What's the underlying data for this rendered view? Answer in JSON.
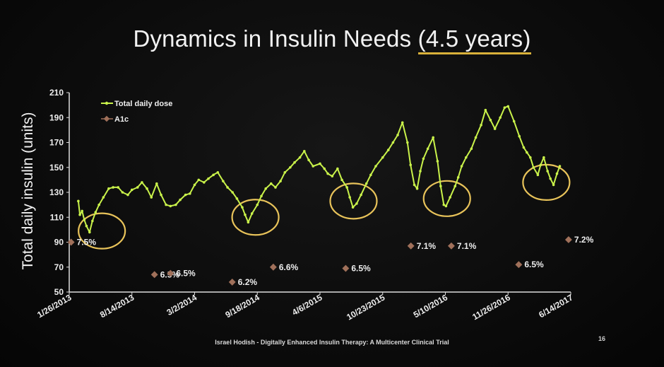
{
  "slide": {
    "title_main": "Dynamics in Insulin Needs ",
    "title_highlight": "(4.5 years)",
    "footer": "Israel Hodish - Digitally Enhanced Insulin Therapy: A Multicenter Clinical Trial",
    "page_number": "16"
  },
  "colors": {
    "dose_line": "#c9f24a",
    "a1c_marker": "#a0705a",
    "circle": "#e8c35a",
    "axis": "#dddddd"
  },
  "chart_data": {
    "type": "line",
    "title": "",
    "ylabel": "Total daily insulin (units)",
    "xlabel": "",
    "ylim": [
      50,
      210
    ],
    "yticks": [
      50,
      70,
      90,
      110,
      130,
      150,
      170,
      190,
      210
    ],
    "x_ticks": [
      "1/26/2013",
      "8/14/2013",
      "3/2/2014",
      "9/18/2014",
      "4/6/2015",
      "10/23/2015",
      "5/10/2016",
      "11/26/2016",
      "6/14/2017"
    ],
    "legend": [
      "Total daily dose",
      "A1c"
    ],
    "legend_position": "top-left",
    "series": [
      {
        "name": "Total daily dose",
        "x": [
          "2013-02-24",
          "2013-03-01",
          "2013-03-08",
          "2013-03-15",
          "2013-03-22",
          "2013-04-01",
          "2013-04-10",
          "2013-04-20",
          "2013-05-01",
          "2013-05-15",
          "2013-06-01",
          "2013-06-15",
          "2013-07-01",
          "2013-07-15",
          "2013-08-01",
          "2013-08-14",
          "2013-09-01",
          "2013-09-15",
          "2013-10-01",
          "2013-10-15",
          "2013-11-01",
          "2013-11-15",
          "2013-12-01",
          "2013-12-15",
          "2014-01-01",
          "2014-01-15",
          "2014-02-01",
          "2014-02-15",
          "2014-03-02",
          "2014-03-15",
          "2014-04-01",
          "2014-04-15",
          "2014-05-01",
          "2014-05-15",
          "2014-06-01",
          "2014-06-15",
          "2014-07-01",
          "2014-07-15",
          "2014-08-01",
          "2014-08-10",
          "2014-08-20",
          "2014-09-01",
          "2014-09-18",
          "2014-10-01",
          "2014-10-15",
          "2014-11-01",
          "2014-11-15",
          "2014-12-01",
          "2014-12-15",
          "2015-01-01",
          "2015-01-15",
          "2015-02-01",
          "2015-02-15",
          "2015-03-01",
          "2015-03-15",
          "2015-04-06",
          "2015-04-20",
          "2015-05-01",
          "2015-05-15",
          "2015-06-01",
          "2015-06-15",
          "2015-07-01",
          "2015-07-10",
          "2015-07-20",
          "2015-08-01",
          "2015-08-15",
          "2015-09-01",
          "2015-09-15",
          "2015-10-01",
          "2015-10-23",
          "2015-11-10",
          "2015-11-25",
          "2015-12-10",
          "2015-12-25",
          "2016-01-10",
          "2016-01-20",
          "2016-02-01",
          "2016-02-10",
          "2016-02-20",
          "2016-03-01",
          "2016-03-15",
          "2016-04-01",
          "2016-04-15",
          "2016-04-25",
          "2016-05-05",
          "2016-05-12",
          "2016-05-25",
          "2016-06-10",
          "2016-06-20",
          "2016-07-01",
          "2016-07-15",
          "2016-08-01",
          "2016-08-15",
          "2016-09-01",
          "2016-09-15",
          "2016-10-01",
          "2016-10-15",
          "2016-11-01",
          "2016-11-15",
          "2016-11-26",
          "2016-12-15",
          "2017-01-01",
          "2017-01-15",
          "2017-01-25",
          "2017-02-05",
          "2017-02-15",
          "2017-03-01",
          "2017-03-10",
          "2017-03-20",
          "2017-04-01",
          "2017-04-10",
          "2017-04-20",
          "2017-05-01",
          "2017-05-10"
        ],
        "values": [
          123,
          112,
          115,
          108,
          103,
          98,
          107,
          114,
          120,
          126,
          133,
          134,
          134,
          130,
          128,
          132,
          134,
          138,
          133,
          126,
          137,
          128,
          120,
          119,
          120,
          124,
          128,
          129,
          136,
          140,
          138,
          141,
          144,
          146,
          139,
          134,
          130,
          125,
          118,
          112,
          106,
          113,
          120,
          127,
          133,
          137,
          134,
          139,
          146,
          150,
          154,
          158,
          163,
          156,
          151,
          153,
          149,
          145,
          143,
          149,
          140,
          134,
          126,
          118,
          121,
          128,
          137,
          144,
          151,
          158,
          164,
          170,
          176,
          186,
          170,
          152,
          136,
          133,
          147,
          157,
          165,
          174,
          155,
          135,
          120,
          119,
          126,
          135,
          142,
          151,
          158,
          165,
          174,
          184,
          196,
          188,
          181,
          190,
          198,
          199,
          187,
          175,
          166,
          162,
          158,
          150,
          144,
          152,
          158,
          147,
          141,
          136,
          145,
          151
        ]
      },
      {
        "name": "A1c",
        "x": [
          "2013-02-01",
          "2013-10-25",
          "2013-12-15",
          "2014-06-30",
          "2014-11-08",
          "2015-06-27",
          "2016-01-21",
          "2016-05-29",
          "2016-12-30",
          "2017-06-07"
        ],
        "values": [
          90,
          64,
          65,
          58,
          70,
          69,
          87,
          87,
          72,
          92
        ],
        "labels": [
          "7.5%",
          "6.5%",
          "6.5%",
          "6.2%",
          "6.6%",
          "6.5%",
          "7.1%",
          "7.1%",
          "6.5%",
          "7.2%"
        ]
      }
    ],
    "annotations": [
      "circles around local minima of total daily dose"
    ]
  }
}
